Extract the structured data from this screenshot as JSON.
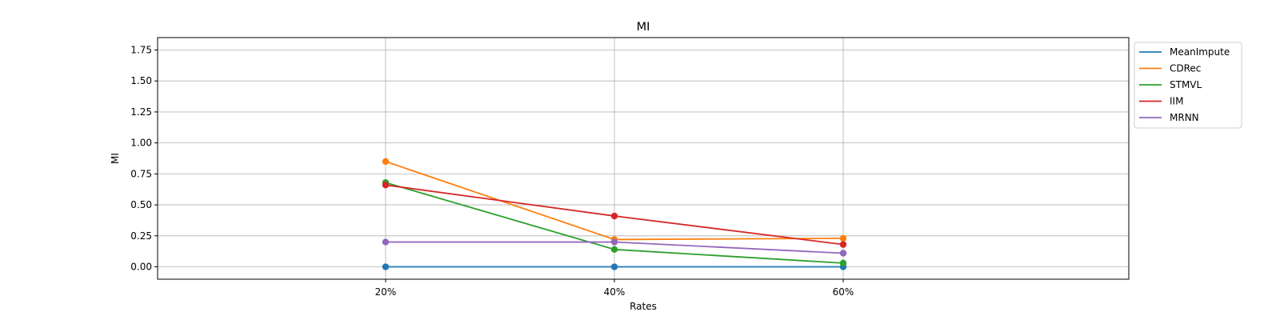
{
  "chart_data": {
    "type": "line",
    "title": "MI",
    "xlabel": "Rates",
    "ylabel": "MI",
    "categories": [
      "20%",
      "40%",
      "60%"
    ],
    "ylim": [
      -0.1,
      1.85
    ],
    "yticks": [
      0.0,
      0.25,
      0.5,
      0.75,
      1.0,
      1.25,
      1.5,
      1.75
    ],
    "ytick_labels": [
      "0.00",
      "0.25",
      "0.50",
      "0.75",
      "1.00",
      "1.25",
      "1.50",
      "1.75"
    ],
    "grid": true,
    "legend_position": "outside-right-top",
    "series": [
      {
        "name": "MeanImpute",
        "color": "#1f77b4",
        "values": [
          0.0,
          0.0,
          0.0
        ]
      },
      {
        "name": "CDRec",
        "color": "#ff7f0e",
        "values": [
          0.85,
          0.22,
          0.23
        ]
      },
      {
        "name": "STMVL",
        "color": "#2ca02c",
        "values": [
          0.68,
          0.14,
          0.03
        ]
      },
      {
        "name": "IIM",
        "color": "#d62728",
        "values": [
          0.66,
          0.41,
          0.18
        ]
      },
      {
        "name": "MRNN",
        "color": "#9467bd",
        "values": [
          0.2,
          0.2,
          0.11
        ]
      }
    ]
  }
}
